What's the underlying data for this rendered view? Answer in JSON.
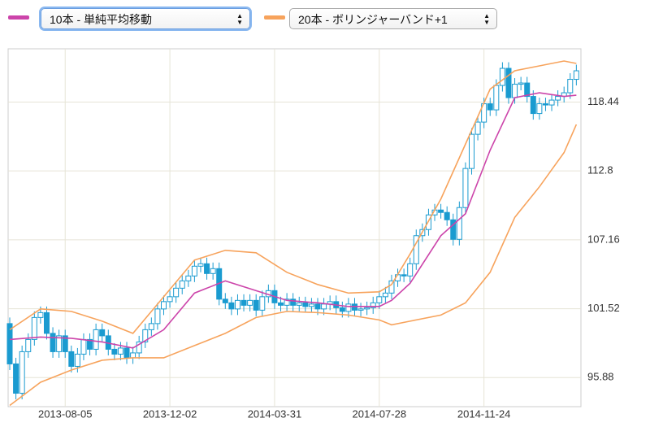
{
  "chart_data": {
    "type": "candlestick",
    "color": "#1a9bd0",
    "categories": [
      null,
      null,
      null,
      null,
      null,
      null,
      null,
      null,
      null,
      "2013-08-05",
      null,
      null,
      null,
      null,
      null,
      null,
      null,
      null,
      null,
      null,
      null,
      null,
      null,
      null,
      null,
      null,
      "2013-12-02",
      null,
      null,
      null,
      null,
      null,
      null,
      null,
      null,
      null,
      null,
      null,
      null,
      null,
      null,
      null,
      null,
      "2014-03-31",
      null,
      null,
      null,
      null,
      null,
      null,
      null,
      null,
      null,
      null,
      null,
      null,
      null,
      null,
      null,
      null,
      "2014-07-28",
      null,
      null,
      null,
      null,
      null,
      null,
      null,
      null,
      null,
      null,
      null,
      null,
      null,
      null,
      null,
      null,
      "2014-11-24",
      null,
      null,
      null,
      null,
      null,
      null,
      null,
      null,
      null,
      null,
      null,
      null,
      null,
      null,
      null
    ],
    "open": [
      100.3,
      97.0,
      94.6,
      98.0,
      99.0,
      100.8,
      101.2,
      99.5,
      98.0,
      99.3,
      98.0,
      96.8,
      97.8,
      99.0,
      98.2,
      99.8,
      99.3,
      98.2,
      97.8,
      98.3,
      97.5,
      97.9,
      98.8,
      99.8,
      100.3,
      101.5,
      102.1,
      102.5,
      103.2,
      103.8,
      104.2,
      105.0,
      105.2,
      104.4,
      104.8,
      102.3,
      102.0,
      101.5,
      102.2,
      101.8,
      102.2,
      101.4,
      102.5,
      103.0,
      102.0,
      101.8,
      102.3,
      101.8,
      102.0,
      101.7,
      101.9,
      101.5,
      101.9,
      102.1,
      101.6,
      101.3,
      101.9,
      101.4,
      101.5,
      101.6,
      102.0,
      102.5,
      102.8,
      103.8,
      104.3,
      104.2,
      105.2,
      107.5,
      108.0,
      109.2,
      109.6,
      109.4,
      108.8,
      107.2,
      109.8,
      113.0,
      115.8,
      116.8,
      118.3,
      117.8,
      119.8,
      121.2,
      118.8,
      119.9,
      120.0,
      118.9,
      117.5,
      118.3,
      118.2,
      118.6,
      118.9,
      119.2,
      120.3
    ],
    "high": [
      100.8,
      97.5,
      98.5,
      99.5,
      101.3,
      101.7,
      101.7,
      100.0,
      99.8,
      99.8,
      98.5,
      98.3,
      99.5,
      99.5,
      100.3,
      100.3,
      99.8,
      98.7,
      98.8,
      98.8,
      98.4,
      99.3,
      100.3,
      100.8,
      102.0,
      102.6,
      103.0,
      103.7,
      104.3,
      104.7,
      105.5,
      105.7,
      105.7,
      105.3,
      105.3,
      102.8,
      102.5,
      102.7,
      102.7,
      102.7,
      102.7,
      103.0,
      103.5,
      103.5,
      102.5,
      102.8,
      102.8,
      102.5,
      102.5,
      102.4,
      102.4,
      102.4,
      102.6,
      102.6,
      102.1,
      102.4,
      102.4,
      102.0,
      102.1,
      102.5,
      103.0,
      103.3,
      104.3,
      104.8,
      104.8,
      105.7,
      108.0,
      108.5,
      109.7,
      110.1,
      110.1,
      109.9,
      109.3,
      110.3,
      113.5,
      116.3,
      117.3,
      118.8,
      118.8,
      120.3,
      121.7,
      121.7,
      120.4,
      120.5,
      120.5,
      119.4,
      118.8,
      118.8,
      119.1,
      119.4,
      119.7,
      120.8,
      121.5
    ],
    "low": [
      96.5,
      94.1,
      94.1,
      97.5,
      98.5,
      100.3,
      99.0,
      97.5,
      97.5,
      97.5,
      96.3,
      96.3,
      97.3,
      97.7,
      97.7,
      98.8,
      97.7,
      97.3,
      97.3,
      97.0,
      97.0,
      97.4,
      98.3,
      99.3,
      99.8,
      101.0,
      101.6,
      102.0,
      102.7,
      103.3,
      103.7,
      104.5,
      103.9,
      103.9,
      101.8,
      101.5,
      101.0,
      101.0,
      101.3,
      101.3,
      100.9,
      100.9,
      102.0,
      101.5,
      101.3,
      101.3,
      101.3,
      101.3,
      101.2,
      101.2,
      101.0,
      101.0,
      101.4,
      101.1,
      100.8,
      100.8,
      100.9,
      100.9,
      101.0,
      101.1,
      101.5,
      102.0,
      102.3,
      103.3,
      103.7,
      103.7,
      104.7,
      107.0,
      107.5,
      108.7,
      108.9,
      108.3,
      106.7,
      106.7,
      109.3,
      112.5,
      115.3,
      116.3,
      117.3,
      117.3,
      119.3,
      118.3,
      118.3,
      119.4,
      118.4,
      117.0,
      117.0,
      117.7,
      117.7,
      118.1,
      118.4,
      118.7,
      119.8
    ],
    "close": [
      97.0,
      94.6,
      98.0,
      99.0,
      100.8,
      101.2,
      99.5,
      98.0,
      99.3,
      98.0,
      96.8,
      97.8,
      99.0,
      98.2,
      99.8,
      99.3,
      98.2,
      97.8,
      98.3,
      97.5,
      97.9,
      98.8,
      99.8,
      100.3,
      101.5,
      102.1,
      102.5,
      103.2,
      103.8,
      104.2,
      105.0,
      105.2,
      104.4,
      104.8,
      102.3,
      102.0,
      101.5,
      102.2,
      101.8,
      102.2,
      101.4,
      102.5,
      103.0,
      102.0,
      101.8,
      102.3,
      101.8,
      102.0,
      101.7,
      101.9,
      101.5,
      101.9,
      102.1,
      101.6,
      101.3,
      101.9,
      101.4,
      101.5,
      101.6,
      102.0,
      102.5,
      102.8,
      103.8,
      104.3,
      104.2,
      105.2,
      107.5,
      108.0,
      109.2,
      109.6,
      109.4,
      108.8,
      107.2,
      109.8,
      113.0,
      115.8,
      116.8,
      118.3,
      117.8,
      119.8,
      121.2,
      118.8,
      119.9,
      120.0,
      118.9,
      117.5,
      118.3,
      118.2,
      118.6,
      118.9,
      119.2,
      120.3,
      121.0
    ],
    "series": [
      {
        "name": "10本 - 単純平均移動",
        "color": "#cc44aa",
        "x": [
          0,
          5,
          10,
          15,
          20,
          25,
          30,
          35,
          40,
          45,
          50,
          55,
          60,
          62,
          65,
          70,
          74,
          78,
          82,
          86,
          90,
          92
        ],
        "values": [
          99.0,
          99.2,
          99.1,
          98.8,
          98.3,
          99.8,
          102.8,
          103.8,
          103.0,
          102.2,
          102.0,
          101.7,
          101.7,
          102.2,
          103.6,
          107.5,
          109.3,
          114.5,
          118.8,
          119.2,
          118.9,
          119.0
        ]
      },
      {
        "name": "20本 - ボリンジャーバンド+1",
        "color": "#f7a35c",
        "x": [
          0,
          5,
          10,
          15,
          20,
          25,
          30,
          35,
          40,
          45,
          50,
          55,
          60,
          62,
          65,
          70,
          74,
          78,
          82,
          86,
          90,
          92
        ],
        "values": [
          99.8,
          101.5,
          101.3,
          100.5,
          99.5,
          102.5,
          105.5,
          106.3,
          106.1,
          104.5,
          103.5,
          102.8,
          102.9,
          103.5,
          106,
          110.5,
          115,
          119.5,
          121,
          121.4,
          121.8,
          121.6
        ],
        "lower": [
          93.6,
          95.5,
          96.5,
          97.3,
          97.5,
          97.5,
          98.5,
          99.5,
          100.8,
          101.3,
          101.2,
          101.0,
          100.6,
          100.2,
          100.5,
          101.0,
          102,
          104.5,
          109,
          111.5,
          114.3,
          116.6
        ]
      }
    ],
    "ylim": [
      93.5,
      122.8
    ],
    "yticks": [
      95.88,
      101.52,
      107.16,
      112.8,
      118.44
    ],
    "grid": true
  }
}
